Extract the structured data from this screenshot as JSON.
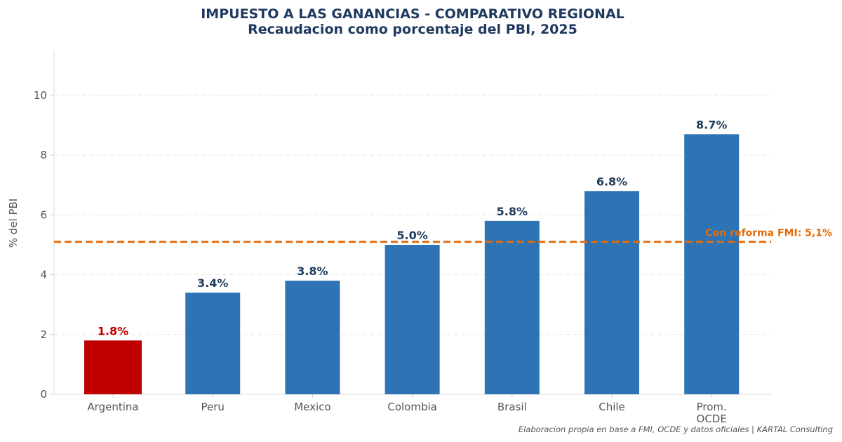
{
  "chart_data": {
    "type": "bar",
    "title": "IMPUESTO A LAS GANANCIAS - COMPARATIVO REGIONAL",
    "subtitle": "Recaudacion como porcentaje del PBI, 2025",
    "ylabel": "% del PBI",
    "xlabel": "",
    "ylim": [
      0,
      11.5
    ],
    "yticks": [
      0,
      2,
      4,
      6,
      8,
      10
    ],
    "grid": "horizontal dashed",
    "categories": [
      [
        "Argentina"
      ],
      [
        "Peru"
      ],
      [
        "Mexico"
      ],
      [
        "Colombia"
      ],
      [
        "Brasil"
      ],
      [
        "Chile"
      ],
      [
        "Prom.",
        "OCDE"
      ]
    ],
    "values": [
      1.8,
      3.4,
      3.8,
      5.0,
      5.8,
      6.8,
      8.7
    ],
    "value_labels": [
      "1.8%",
      "3.4%",
      "3.8%",
      "5.0%",
      "5.8%",
      "6.8%",
      "8.7%"
    ],
    "bar_colors": [
      "#c00000",
      "#2e74b5",
      "#2e74b5",
      "#2e74b5",
      "#2e74b5",
      "#2e74b5",
      "#2e74b5"
    ],
    "label_colors": [
      "#c00000",
      "#1f3a5f",
      "#1f3a5f",
      "#1f3a5f",
      "#1f3a5f",
      "#1f3a5f",
      "#1f3a5f"
    ],
    "reference_line": {
      "value": 5.1,
      "label": "Con reforma FMI: 5,1%",
      "color": "#e36c0a",
      "style": "dashed"
    },
    "source_note": "Elaboracion propia en base a FMI, OCDE y datos oficiales | KARTAL Consulting"
  }
}
